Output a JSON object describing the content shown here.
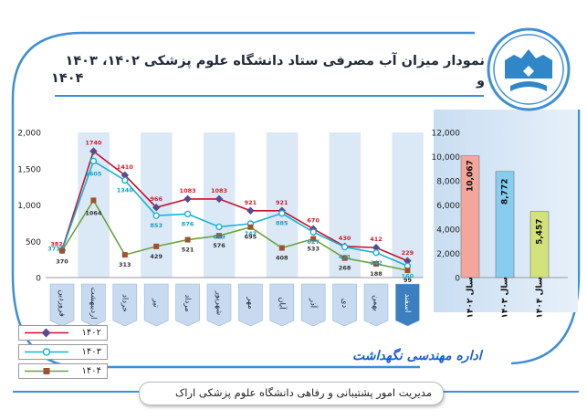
{
  "title": {
    "line1": "نمودار میزان آب مصرفی ستاد دانشگاه علوم پزشکی ۱۴۰۲، ۱۴۰۳ و",
    "line2": "۱۴۰۴"
  },
  "department": "اداره مهندسی نگهداشت",
  "footer": "مدیریت امور پشتیبانی و رفاهی دانشگاه علوم پزشکی اراک",
  "colors": {
    "frame": "#3d8fd6",
    "line_1402": "#c8102e",
    "line_1403": "#17b3d6",
    "line_1404": "#6aa43c",
    "bar_1402": "#f4a69a",
    "bar_1403": "#86cdf0",
    "bar_1404": "#d3e27a"
  },
  "chart_data": [
    {
      "type": "line",
      "categories": [
        "فروردین",
        "اردیبهشت",
        "خرداد",
        "تیر",
        "مرداد",
        "شهریور",
        "مهر",
        "آبان",
        "آذر",
        "دی",
        "بهمن",
        "اسفند"
      ],
      "ylim": [
        0,
        2000
      ],
      "yticks": [
        "0",
        "500",
        "1,000",
        "1,500",
        "2,000"
      ],
      "series": [
        {
          "name": "۱۴۰۲",
          "values": [
            382,
            1740,
            1410,
            966,
            1083,
            1083,
            921,
            921,
            670,
            430,
            412,
            229
          ]
        },
        {
          "name": "۱۴۰۳",
          "values": [
            373,
            1605,
            1340,
            853,
            876,
            699,
            742,
            885,
            627,
            421,
            342,
            160
          ]
        },
        {
          "name": "۱۴۰۴",
          "values": [
            370,
            1064,
            313,
            429,
            521,
            576,
            695,
            408,
            533,
            268,
            188,
            99
          ]
        }
      ],
      "legend": "bottom-left",
      "grid": false
    },
    {
      "type": "bar",
      "categories": [
        "سال ۱۴۰۲",
        "سال ۱۴۰۳",
        "سال ۱۴۰۴"
      ],
      "values": [
        10067,
        8772,
        5457
      ],
      "value_labels": [
        "10,067",
        "8,772",
        "5,457"
      ],
      "ylim": [
        0,
        12000
      ],
      "yticks": [
        "0",
        "2,000",
        "4,000",
        "6,000",
        "8,000",
        "10,000",
        "12,000"
      ],
      "grid": false
    }
  ]
}
